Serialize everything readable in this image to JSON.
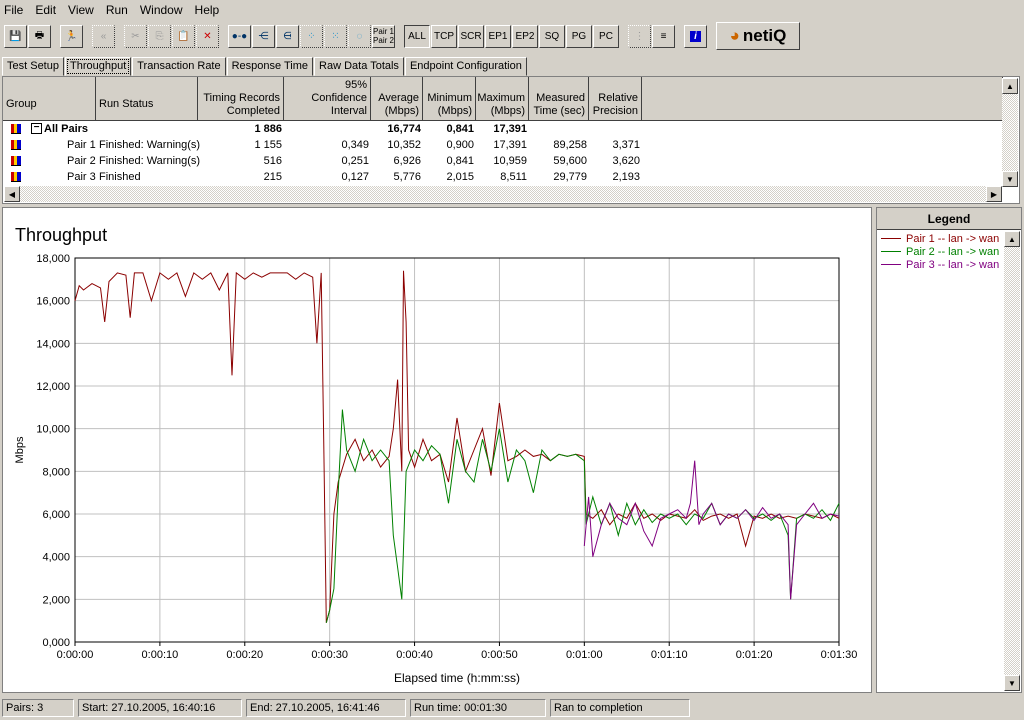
{
  "menu": [
    "File",
    "Edit",
    "View",
    "Run",
    "Window",
    "Help"
  ],
  "toolbar": {
    "pair_label_1": "Pair 1",
    "pair_label_2": "Pair 2",
    "filters": [
      "ALL",
      "TCP",
      "SCR",
      "EP1",
      "EP2",
      "SQ",
      "PG",
      "PC"
    ],
    "logo": "netiQ",
    "icons": [
      "save-icon",
      "print-icon",
      "run-icon",
      "back-icon",
      "cut-icon",
      "copy-icon",
      "paste-icon",
      "delete-icon",
      "pair-icon",
      "multicast-icon",
      "group-icon",
      "network-icon",
      "network2-icon",
      "loop-icon",
      "list-icon",
      "lines-icon",
      "info-icon"
    ]
  },
  "tabs": [
    "Test Setup",
    "Throughput",
    "Transaction Rate",
    "Response Time",
    "Raw Data Totals",
    "Endpoint Configuration"
  ],
  "active_tab": "Throughput",
  "table": {
    "headers": [
      "Group",
      "Run Status",
      "Timing Records Completed",
      "95% Confidence Interval",
      "Average (Mbps)",
      "Minimum (Mbps)",
      "Maximum (Mbps)",
      "Measured Time (sec)",
      "Relative Precision"
    ],
    "summary": {
      "group": "All Pairs",
      "status": "",
      "records": "1 886",
      "ci": "",
      "avg": "16,774",
      "min": "0,841",
      "max": "17,391",
      "time": "",
      "precision": ""
    },
    "rows": [
      {
        "group": "Pair 1",
        "status": "Finished: Warning(s)",
        "records": "1 155",
        "ci": "0,349",
        "avg": "10,352",
        "min": "0,900",
        "max": "17,391",
        "time": "89,258",
        "precision": "3,371"
      },
      {
        "group": "Pair 2",
        "status": "Finished: Warning(s)",
        "records": "516",
        "ci": "0,251",
        "avg": "6,926",
        "min": "0,841",
        "max": "10,959",
        "time": "59,600",
        "precision": "3,620"
      },
      {
        "group": "Pair 3",
        "status": "Finished",
        "records": "215",
        "ci": "0,127",
        "avg": "5,776",
        "min": "2,015",
        "max": "8,511",
        "time": "29,779",
        "precision": "2,193"
      }
    ]
  },
  "chart_data": {
    "type": "line",
    "title": "Throughput",
    "xlabel": "Elapsed time (h:mm:ss)",
    "ylabel": "Mbps",
    "xlim": [
      0,
      90
    ],
    "ylim": [
      0,
      18000
    ],
    "grid": true,
    "legend_placement": "right panel",
    "xticks": [
      "0:00:00",
      "0:00:10",
      "0:00:20",
      "0:00:30",
      "0:00:40",
      "0:00:50",
      "0:01:00",
      "0:01:10",
      "0:01:20",
      "0:01:30"
    ],
    "yticks": [
      "0,000",
      "2,000",
      "4,000",
      "6,000",
      "8,000",
      "10,000",
      "12,000",
      "14,000",
      "16,000",
      "18,000"
    ],
    "series": [
      {
        "name": "Pair 1 -- lan -> wan",
        "color": "#8b0000",
        "points": [
          [
            0,
            16000
          ],
          [
            0.5,
            16700
          ],
          [
            1,
            16500
          ],
          [
            2,
            16800
          ],
          [
            3,
            16600
          ],
          [
            3.5,
            15000
          ],
          [
            4,
            16900
          ],
          [
            5,
            17300
          ],
          [
            6,
            17200
          ],
          [
            6.5,
            15200
          ],
          [
            7,
            17300
          ],
          [
            8,
            17300
          ],
          [
            9,
            16000
          ],
          [
            10,
            17300
          ],
          [
            11,
            17000
          ],
          [
            12,
            17300
          ],
          [
            13,
            16200
          ],
          [
            14,
            17300
          ],
          [
            15,
            17000
          ],
          [
            16,
            17300
          ],
          [
            17,
            16500
          ],
          [
            18,
            17300
          ],
          [
            18.5,
            12500
          ],
          [
            19,
            17300
          ],
          [
            20,
            17000
          ],
          [
            21,
            17300
          ],
          [
            22,
            17100
          ],
          [
            23,
            17300
          ],
          [
            24,
            17300
          ],
          [
            25,
            17300
          ],
          [
            26,
            17000
          ],
          [
            27,
            17300
          ],
          [
            28,
            17100
          ],
          [
            28.5,
            14000
          ],
          [
            29,
            17300
          ],
          [
            29.3,
            9500
          ],
          [
            29.6,
            900
          ],
          [
            30,
            1500
          ],
          [
            30.5,
            6000
          ],
          [
            31,
            7500
          ],
          [
            32,
            8800
          ],
          [
            33,
            9500
          ],
          [
            34,
            8500
          ],
          [
            35,
            9000
          ],
          [
            36,
            8200
          ],
          [
            37,
            8700
          ],
          [
            37.5,
            10000
          ],
          [
            38,
            12300
          ],
          [
            38.5,
            8000
          ],
          [
            38.7,
            17400
          ],
          [
            39,
            15000
          ],
          [
            39.3,
            9000
          ],
          [
            40,
            8200
          ],
          [
            41,
            9500
          ],
          [
            42,
            8500
          ],
          [
            43,
            8800
          ],
          [
            44,
            7500
          ],
          [
            45,
            10500
          ],
          [
            46,
            8000
          ],
          [
            47,
            9000
          ],
          [
            48,
            10000
          ],
          [
            49,
            7800
          ],
          [
            50,
            11200
          ],
          [
            51,
            8500
          ],
          [
            52,
            8700
          ],
          [
            53,
            9000
          ],
          [
            54,
            8700
          ],
          [
            55,
            8800
          ],
          [
            56,
            8500
          ],
          [
            57,
            8800
          ],
          [
            58,
            8700
          ],
          [
            59,
            8800
          ],
          [
            60,
            8700
          ],
          [
            60.2,
            6000
          ],
          [
            61,
            5800
          ],
          [
            62,
            6200
          ],
          [
            63,
            5500
          ],
          [
            64,
            6000
          ],
          [
            65,
            5800
          ],
          [
            66,
            6500
          ],
          [
            67,
            5800
          ],
          [
            68,
            6000
          ],
          [
            69,
            5700
          ],
          [
            70,
            6000
          ],
          [
            71,
            5900
          ],
          [
            72,
            5800
          ],
          [
            73,
            6200
          ],
          [
            74,
            5700
          ],
          [
            75,
            5900
          ],
          [
            76,
            6000
          ],
          [
            77,
            5800
          ],
          [
            78,
            6000
          ],
          [
            79,
            4500
          ],
          [
            80,
            5900
          ],
          [
            81,
            5800
          ],
          [
            82,
            6000
          ],
          [
            83,
            5800
          ],
          [
            84,
            5900
          ],
          [
            85,
            5800
          ],
          [
            86,
            6000
          ],
          [
            87,
            5900
          ],
          [
            88,
            5800
          ],
          [
            89,
            6000
          ],
          [
            90,
            5800
          ]
        ]
      },
      {
        "name": "Pair 2 -- lan -> wan",
        "color": "#008000",
        "points": [
          [
            29.6,
            900
          ],
          [
            30,
            1500
          ],
          [
            30.5,
            2500
          ],
          [
            31,
            7000
          ],
          [
            31.5,
            10900
          ],
          [
            32,
            9000
          ],
          [
            33,
            8000
          ],
          [
            34,
            9500
          ],
          [
            35,
            8500
          ],
          [
            36,
            9000
          ],
          [
            37,
            8500
          ],
          [
            37.5,
            5000
          ],
          [
            38,
            3500
          ],
          [
            38.5,
            2000
          ],
          [
            39,
            8000
          ],
          [
            40,
            9000
          ],
          [
            41,
            8500
          ],
          [
            42,
            9200
          ],
          [
            43,
            8800
          ],
          [
            44,
            6500
          ],
          [
            45,
            9500
          ],
          [
            46,
            8000
          ],
          [
            47,
            7500
          ],
          [
            48,
            9500
          ],
          [
            49,
            8000
          ],
          [
            50,
            10000
          ],
          [
            51,
            7500
          ],
          [
            52,
            9000
          ],
          [
            53,
            8500
          ],
          [
            54,
            7000
          ],
          [
            55,
            9000
          ],
          [
            56,
            8500
          ],
          [
            57,
            8800
          ],
          [
            58,
            8700
          ],
          [
            59,
            8800
          ],
          [
            60,
            8500
          ],
          [
            60.2,
            5500
          ],
          [
            61,
            6800
          ],
          [
            62,
            5500
          ],
          [
            63,
            6500
          ],
          [
            64,
            5000
          ],
          [
            65,
            6500
          ],
          [
            66,
            5500
          ],
          [
            67,
            6200
          ],
          [
            68,
            5600
          ],
          [
            69,
            6000
          ],
          [
            70,
            5800
          ],
          [
            71,
            6000
          ],
          [
            72,
            5500
          ],
          [
            73,
            6000
          ],
          [
            74,
            5800
          ],
          [
            75,
            6500
          ],
          [
            76,
            5500
          ],
          [
            77,
            6000
          ],
          [
            78,
            5800
          ],
          [
            79,
            6200
          ],
          [
            80,
            5800
          ],
          [
            81,
            6000
          ],
          [
            82,
            5700
          ],
          [
            83,
            6000
          ],
          [
            84,
            5000
          ],
          [
            84.3,
            2000
          ],
          [
            85,
            5800
          ],
          [
            86,
            6000
          ],
          [
            87,
            5800
          ],
          [
            88,
            6200
          ],
          [
            89,
            5700
          ],
          [
            90,
            6500
          ]
        ]
      },
      {
        "name": "Pair 3 -- lan -> wan",
        "color": "#800080",
        "points": [
          [
            60,
            4500
          ],
          [
            60.5,
            6800
          ],
          [
            61,
            4000
          ],
          [
            62,
            5500
          ],
          [
            63,
            6500
          ],
          [
            64,
            5800
          ],
          [
            65,
            5500
          ],
          [
            66,
            6500
          ],
          [
            67,
            5200
          ],
          [
            68,
            4500
          ],
          [
            69,
            5800
          ],
          [
            70,
            6000
          ],
          [
            71,
            6200
          ],
          [
            72,
            5800
          ],
          [
            72.5,
            6500
          ],
          [
            73,
            8500
          ],
          [
            73.5,
            5500
          ],
          [
            74,
            6000
          ],
          [
            75,
            6500
          ],
          [
            76,
            5500
          ],
          [
            77,
            6000
          ],
          [
            78,
            5800
          ],
          [
            79,
            6200
          ],
          [
            80,
            5700
          ],
          [
            81,
            6300
          ],
          [
            82,
            5800
          ],
          [
            83,
            6000
          ],
          [
            84,
            5500
          ],
          [
            84.3,
            2000
          ],
          [
            85,
            5500
          ],
          [
            86,
            6000
          ],
          [
            87,
            6500
          ],
          [
            88,
            5800
          ],
          [
            89,
            6000
          ],
          [
            90,
            5900
          ]
        ]
      }
    ]
  },
  "legend": {
    "title": "Legend"
  },
  "status": {
    "pairs": "Pairs: 3",
    "start": "Start: 27.10.2005, 16:40:16",
    "end": "End: 27.10.2005, 16:41:46",
    "runtime": "Run time: 00:01:30",
    "result": "Ran to completion"
  }
}
